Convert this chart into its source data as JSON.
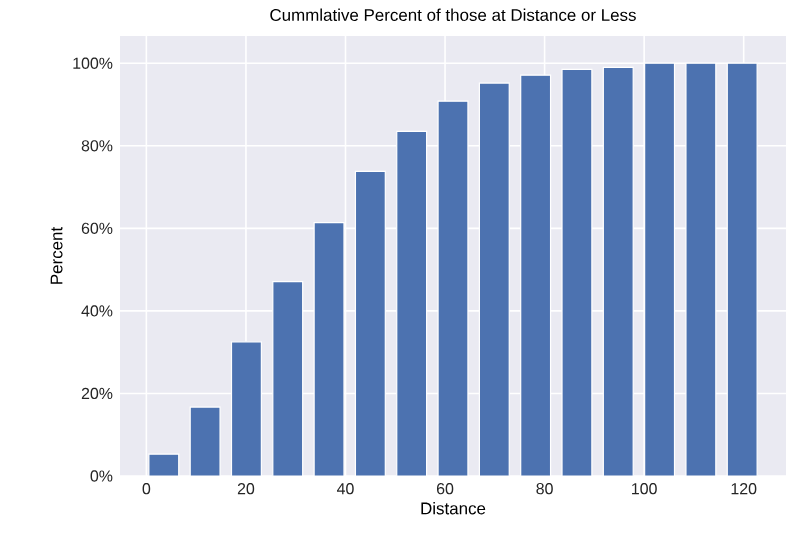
{
  "chart_data": {
    "type": "bar",
    "title": "Cummlative Percent of those at Distance or Less",
    "xlabel": "Distance",
    "ylabel": "Percent",
    "x": [
      3.5,
      11.8,
      20.1,
      28.4,
      36.7,
      45,
      53.3,
      61.6,
      69.9,
      78.2,
      86.5,
      94.8,
      103.1,
      111.4,
      119.7
    ],
    "values": [
      5.3,
      16.7,
      32.5,
      47.1,
      61.4,
      73.8,
      83.5,
      90.8,
      95.2,
      97.1,
      98.5,
      99.0,
      100,
      100,
      100
    ],
    "color": "#4c72b0",
    "xlim": [
      -5.3,
      128.5
    ],
    "ylim": [
      0,
      106.6
    ],
    "xticks": [
      0,
      20,
      40,
      60,
      80,
      100,
      120
    ],
    "yticks": [
      {
        "value": 0,
        "label": "0%"
      },
      {
        "value": 20,
        "label": "20%"
      },
      {
        "value": 40,
        "label": "40%"
      },
      {
        "value": 60,
        "label": "60%"
      },
      {
        "value": 80,
        "label": "80%"
      },
      {
        "value": 100,
        "label": "100%"
      }
    ],
    "grid": true
  }
}
